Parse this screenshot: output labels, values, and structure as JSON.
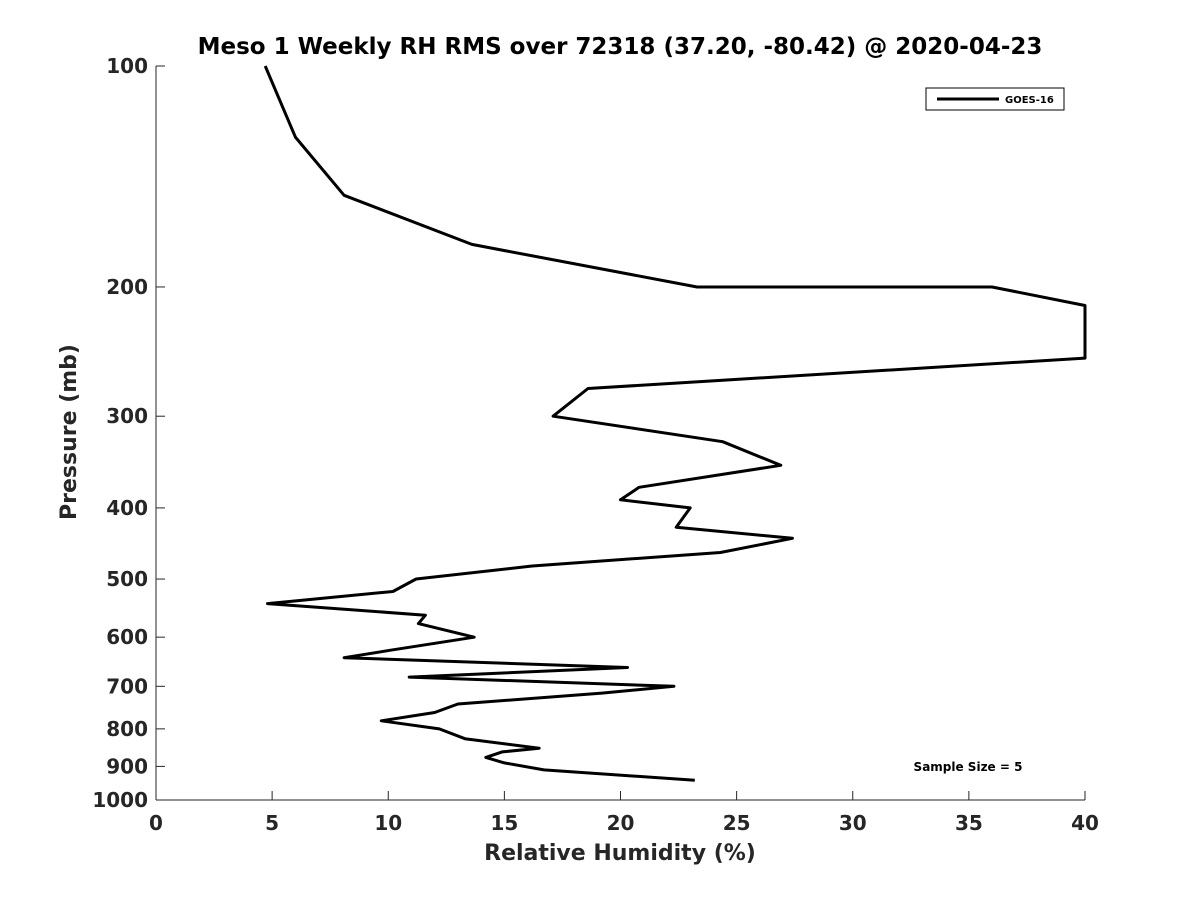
{
  "chart_data": {
    "type": "line",
    "title": "Meso 1 Weekly RH RMS over 72318 (37.20, -80.42) @ 2020-04-23",
    "xlabel": "Relative Humidity (%)",
    "ylabel": "Pressure (mb)",
    "xlim": [
      0,
      40
    ],
    "ylim": [
      100,
      1000
    ],
    "y_scale": "log",
    "y_reversed": true,
    "x_ticks": [
      "0",
      "5",
      "10",
      "15",
      "20",
      "25",
      "30",
      "35",
      "40"
    ],
    "y_ticks": [
      "100",
      "200",
      "300",
      "400",
      "500",
      "600",
      "700",
      "800",
      "900",
      "1000"
    ],
    "grid": false,
    "legend_position": "top-right",
    "annotation": "Sample Size = 5",
    "series": [
      {
        "name": "GOES-16",
        "color": "#000000",
        "points": [
          [
            4.7,
            100
          ],
          [
            6.0,
            125
          ],
          [
            8.1,
            150
          ],
          [
            13.6,
            175
          ],
          [
            23.3,
            200
          ],
          [
            36.0,
            200
          ],
          [
            40.0,
            212
          ],
          [
            40.0,
            250
          ],
          [
            18.6,
            275
          ],
          [
            17.1,
            300
          ],
          [
            24.4,
            325
          ],
          [
            26.9,
            350
          ],
          [
            20.8,
            375
          ],
          [
            20.0,
            390
          ],
          [
            23.0,
            400
          ],
          [
            22.4,
            425
          ],
          [
            27.4,
            440
          ],
          [
            24.3,
            460
          ],
          [
            16.2,
            480
          ],
          [
            11.2,
            500
          ],
          [
            10.2,
            520
          ],
          [
            4.8,
            540
          ],
          [
            11.6,
            560
          ],
          [
            11.3,
            575
          ],
          [
            13.7,
            600
          ],
          [
            10.1,
            625
          ],
          [
            8.1,
            640
          ],
          [
            20.3,
            660
          ],
          [
            10.9,
            680
          ],
          [
            22.3,
            700
          ],
          [
            19.2,
            715
          ],
          [
            13.0,
            740
          ],
          [
            12.0,
            760
          ],
          [
            9.7,
            780
          ],
          [
            12.2,
            800
          ],
          [
            13.3,
            825
          ],
          [
            16.5,
            850
          ],
          [
            14.9,
            860
          ],
          [
            14.2,
            875
          ],
          [
            15.0,
            890
          ],
          [
            16.7,
            910
          ],
          [
            23.2,
            940
          ]
        ]
      }
    ]
  }
}
